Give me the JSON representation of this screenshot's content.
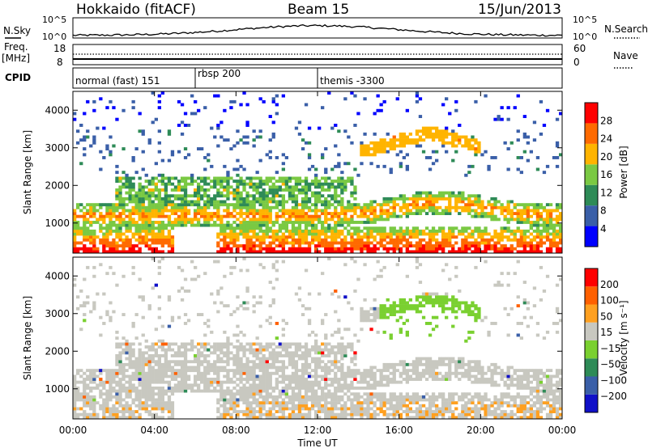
{
  "header": {
    "title": "Hokkaido (fitACF)",
    "beam": "Beam 15",
    "date": "15/Jun/2013"
  },
  "top_panels": {
    "nsky_label": "N.Sky",
    "nsky_ticks": [
      "10^5",
      "10^0"
    ],
    "nsearch_label": "N.Search",
    "nsearch_ticks": [
      "10^5",
      "10^0"
    ],
    "freq_label": "Freq.",
    "freq_unit": "[MHz]",
    "freq_ticks": [
      "18",
      "8"
    ],
    "nave_label": "Nave",
    "nave_ticks": [
      "60",
      "0"
    ],
    "cpid_label": "CPID",
    "cpid_segments": [
      {
        "label": "normal (fast) 151",
        "start_hour": 0,
        "end_hour": 6
      },
      {
        "label": "rbsp 200",
        "start_hour": 6,
        "end_hour": 12
      },
      {
        "label": "themis -3300",
        "start_hour": 12,
        "end_hour": 24
      }
    ]
  },
  "chart_data": [
    {
      "type": "heatmap",
      "name": "power",
      "ylabel": "Slant Range [km]",
      "yticks": [
        "1000",
        "2000",
        "3000",
        "4000"
      ],
      "ylim": [
        200,
        4500
      ],
      "xlim_hours": [
        0,
        24
      ],
      "colorbar": {
        "label": "Power [dB]",
        "ticks": [
          "28",
          "24",
          "20",
          "16",
          "12",
          "8",
          "4"
        ],
        "colors": [
          "#0000ff",
          "#3a5fa8",
          "#2e8b57",
          "#7ac943",
          "#ffb400",
          "#ff6a00",
          "#ff0000"
        ]
      }
    },
    {
      "type": "heatmap",
      "name": "velocity",
      "ylabel": "Slant Range [km]",
      "yticks": [
        "1000",
        "2000",
        "3000",
        "4000"
      ],
      "ylim": [
        200,
        4500
      ],
      "xlim_hours": [
        0,
        24
      ],
      "colorbar": {
        "label": "Velocity [m s⁻¹]",
        "ticks": [
          "200",
          "100",
          "50",
          "15",
          "−15",
          "−50",
          "−100",
          "−200"
        ],
        "colors": [
          "#1010c8",
          "#3a5fa8",
          "#2e8b57",
          "#7ad030",
          "#c8c8c0",
          "#ffa020",
          "#ff6000",
          "#ff0000"
        ]
      }
    }
  ],
  "x_axis": {
    "ticks": [
      "00:00",
      "04:00",
      "08:00",
      "12:00",
      "16:00",
      "20:00",
      "00:00"
    ],
    "label": "Time UT"
  }
}
